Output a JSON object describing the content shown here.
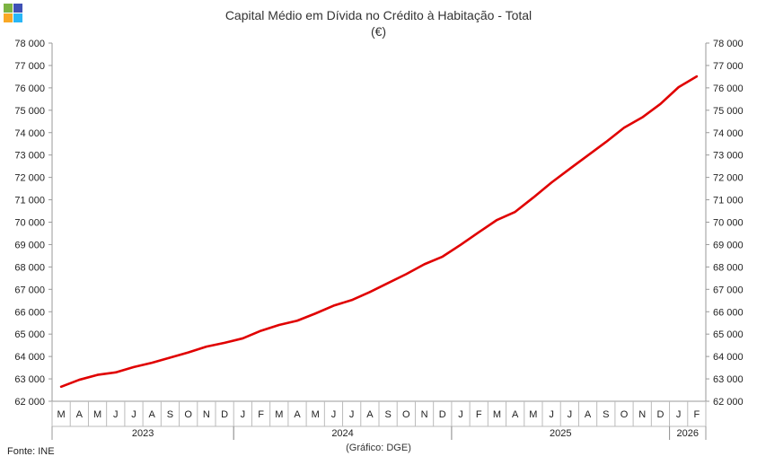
{
  "header": {
    "title": "Capital Médio em Dívida no Crédito à Habitação - Total",
    "unit": "(€)"
  },
  "footer": {
    "source": "Fonte: INE",
    "credit": "(Gráfico: DGE)"
  },
  "logo": {
    "colors": [
      "#7cb342",
      "#3f51b5",
      "#f9a825",
      "#29b6f6"
    ]
  },
  "chart_data": {
    "type": "line",
    "title": "Capital Médio em Dívida no Crédito à Habitação - Total",
    "subtitle": "(€)",
    "color": "#e00000",
    "ylim": [
      62000,
      78000
    ],
    "ytick_step": 1000,
    "yticks": [
      "62 000",
      "63 000",
      "64 000",
      "65 000",
      "66 000",
      "67 000",
      "68 000",
      "69 000",
      "70 000",
      "71 000",
      "72 000",
      "73 000",
      "74 000",
      "75 000",
      "76 000",
      "77 000",
      "78 000"
    ],
    "grid": false,
    "months": [
      "M",
      "A",
      "M",
      "J",
      "J",
      "A",
      "S",
      "O",
      "N",
      "D",
      "J",
      "F",
      "M",
      "A",
      "M",
      "J",
      "J",
      "A",
      "S",
      "O",
      "N",
      "D",
      "J",
      "F",
      "M",
      "A",
      "M",
      "J",
      "J",
      "A",
      "S",
      "O",
      "N",
      "D",
      "J",
      "F"
    ],
    "years": [
      {
        "label": "2023",
        "start": 0,
        "end": 10
      },
      {
        "label": "2024",
        "start": 10,
        "end": 22
      },
      {
        "label": "2025",
        "start": 22,
        "end": 34
      },
      {
        "label": "2026",
        "start": 34,
        "end": 36
      }
    ],
    "values": [
      62650,
      62960,
      63180,
      63290,
      63530,
      63720,
      63950,
      64180,
      64440,
      64610,
      64810,
      65150,
      65410,
      65600,
      65920,
      66270,
      66520,
      66880,
      67280,
      67680,
      68120,
      68460,
      68990,
      69550,
      70100,
      70460,
      71100,
      71770,
      72380,
      72980,
      73580,
      74220,
      74680,
      75280,
      76030,
      76510
    ]
  }
}
